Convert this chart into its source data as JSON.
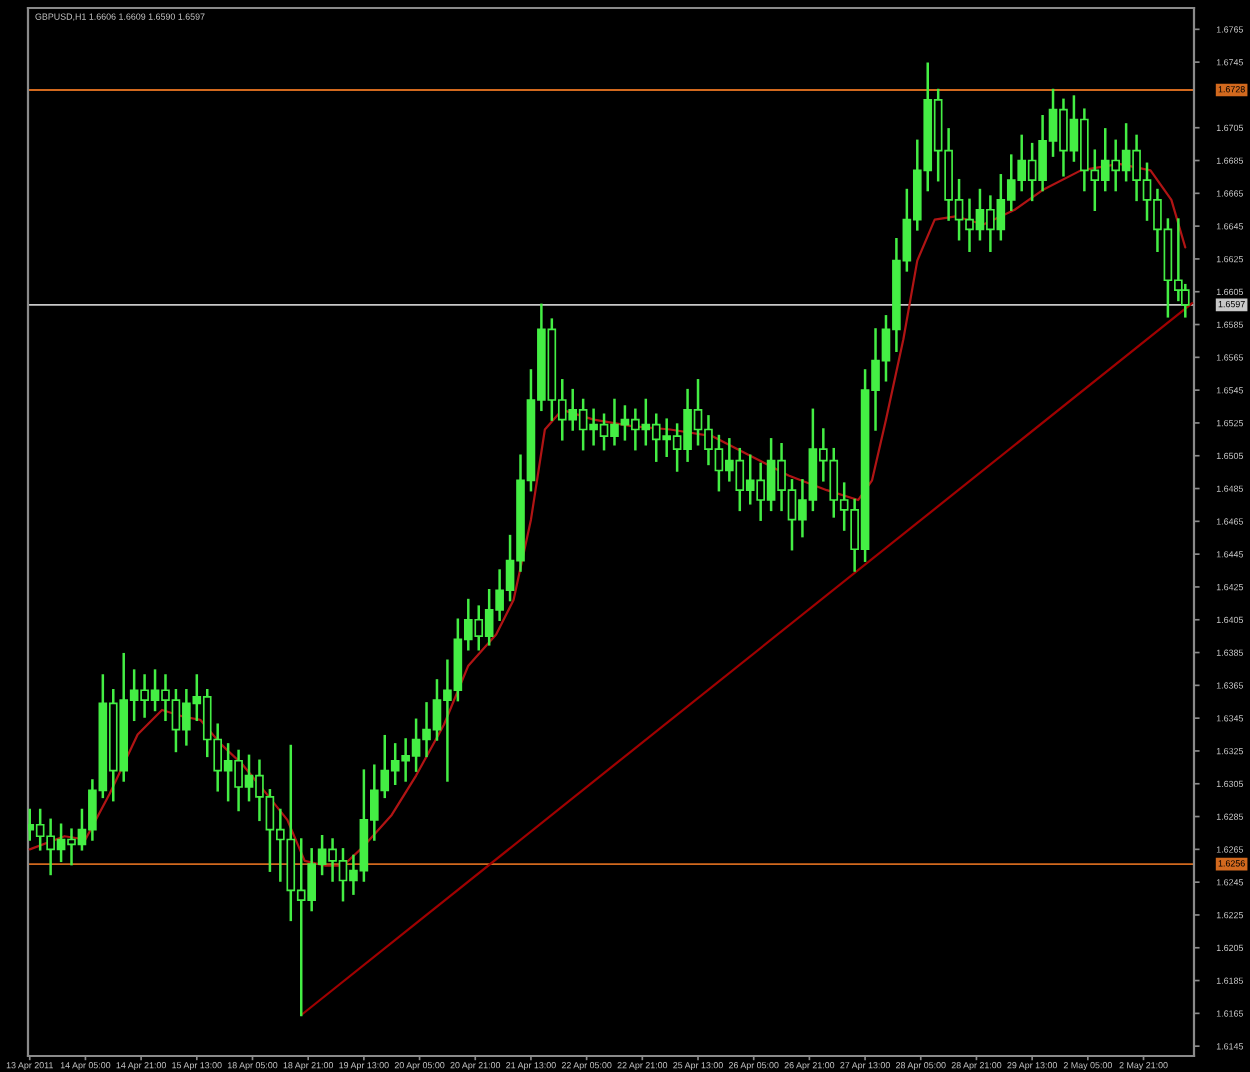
{
  "chart_data": {
    "type": "candlestick",
    "title": "GBPUSD,H1 1.6606 1.6609 1.6590 1.6597",
    "categories": [
      "13 Apr 2011",
      null,
      null,
      null,
      null,
      null,
      null,
      null,
      null,
      null,
      null,
      null,
      null,
      null,
      null,
      null,
      "14 Apr 05:00",
      null,
      null,
      null,
      null,
      null,
      null,
      null,
      null,
      null,
      null,
      null,
      null,
      null,
      null,
      null,
      "14 Apr 21:00",
      null,
      null,
      null,
      null,
      null,
      null,
      null,
      null,
      null,
      null,
      null,
      null,
      null,
      null,
      null,
      "15 Apr 13:00",
      null,
      null,
      null,
      null,
      null,
      null,
      null,
      null,
      null,
      null,
      null,
      null,
      null,
      null,
      null,
      "18 Apr 05:00",
      null,
      null,
      null,
      null,
      null,
      null,
      null,
      null,
      null,
      null,
      null,
      null,
      null,
      null,
      null,
      "18 Apr 21:00",
      null,
      null,
      null,
      null,
      null,
      null,
      null,
      null,
      null,
      null,
      null,
      null,
      null,
      null,
      null,
      "19 Apr 13:00",
      null,
      null,
      null,
      null,
      null,
      null,
      null,
      null,
      null,
      null,
      null,
      null,
      null,
      null,
      null,
      "20 Apr 05:00",
      null,
      null,
      null,
      null,
      null,
      null,
      null,
      null,
      null,
      null,
      null,
      null,
      null,
      null,
      null,
      "20 Apr 21:00",
      null,
      null,
      null,
      null,
      null,
      null,
      null,
      null,
      null,
      null,
      null,
      null,
      null,
      null,
      null,
      "21 Apr 13:00",
      null,
      null,
      null,
      null,
      null,
      null,
      null,
      null,
      null,
      null,
      null,
      null,
      null,
      null,
      null,
      "22 Apr 05:00",
      null,
      null,
      null,
      null,
      null,
      null,
      null,
      null,
      null,
      null,
      null,
      null,
      null,
      null,
      null,
      "22 Apr 21:00",
      null,
      null,
      null,
      null,
      null,
      null,
      null,
      null,
      null,
      null,
      null,
      null,
      null,
      null,
      null,
      "25 Apr 13:00",
      null,
      null,
      null,
      null,
      null,
      null,
      null,
      null,
      null,
      null,
      null,
      null,
      null,
      null,
      null,
      "26 Apr 05:00",
      null,
      null,
      null,
      null,
      null,
      null,
      null,
      null,
      null,
      null,
      null,
      null,
      null,
      null,
      null,
      "26 Apr 21:00",
      null,
      null,
      null,
      null,
      null,
      null,
      null,
      null,
      null,
      null,
      null,
      null,
      null,
      null,
      null,
      "27 Apr 13:00",
      null,
      null,
      null,
      null,
      null,
      null,
      null,
      null,
      null,
      null,
      null,
      null,
      null,
      null,
      null,
      "28 Apr 05:00",
      null,
      null,
      null,
      null,
      null,
      null,
      null,
      null,
      null,
      null,
      null,
      null,
      null,
      null,
      null,
      "28 Apr 21:00",
      null,
      null,
      null,
      null,
      null,
      null,
      null,
      null,
      null,
      null,
      null,
      null,
      null,
      null,
      null,
      "29 Apr 13:00",
      null,
      null,
      null,
      null,
      null,
      null,
      null,
      null,
      null,
      null,
      null,
      null,
      null,
      null,
      null,
      "2 May 05:00",
      null,
      null,
      null,
      null,
      null,
      null,
      null,
      null,
      null,
      null,
      null,
      null,
      null,
      null,
      null,
      "2 May 21:00",
      null,
      null,
      null,
      null,
      null,
      null,
      null,
      null,
      null,
      null,
      null,
      null,
      null,
      null
    ],
    "ylim": [
      1.6139,
      1.6778
    ],
    "yticks": [
      1.6145,
      1.6165,
      1.6185,
      1.6205,
      1.6225,
      1.6245,
      1.6265,
      1.6285,
      1.6305,
      1.6325,
      1.6345,
      1.6365,
      1.6385,
      1.6405,
      1.6425,
      1.6445,
      1.6465,
      1.6485,
      1.6505,
      1.6525,
      1.6545,
      1.6565,
      1.6585,
      1.6605,
      1.6625,
      1.6645,
      1.6665,
      1.6685,
      1.6705,
      1.6745,
      1.6765
    ],
    "series": [
      {
        "color": "#44ee44",
        "ohlc": [
          [
            1.6277,
            1.6289,
            1.6271,
            1.628
          ],
          null,
          null,
          [
            1.628,
            1.6289,
            1.6265,
            1.6273
          ],
          null,
          null,
          [
            1.6273,
            1.6283,
            1.625,
            1.6265
          ],
          null,
          null,
          [
            1.6265,
            1.628,
            1.6258,
            1.6271
          ],
          null,
          null,
          [
            1.6271,
            1.6277,
            1.6256,
            1.6268
          ],
          null,
          null,
          [
            1.6268,
            1.6289,
            1.6265,
            1.6277
          ],
          null,
          null,
          [
            1.6277,
            1.6307,
            1.6271,
            1.6301
          ],
          null,
          null,
          [
            1.6301,
            1.6371,
            1.6297,
            1.6354
          ],
          null,
          null,
          [
            1.6354,
            1.6362,
            1.6295,
            1.6313
          ],
          null,
          null,
          [
            1.6313,
            1.6384,
            1.6307,
            1.6356
          ],
          null,
          null,
          [
            1.6356,
            1.6374,
            1.6344,
            1.6362
          ],
          null,
          null,
          [
            1.6362,
            1.6371,
            1.6346,
            1.6356
          ],
          null,
          null,
          [
            1.6356,
            1.6374,
            1.635,
            1.6362
          ],
          null,
          null,
          [
            1.6362,
            1.6371,
            1.6344,
            1.6356
          ],
          null,
          null,
          [
            1.6356,
            1.6362,
            1.6325,
            1.6338
          ],
          null,
          null,
          [
            1.6338,
            1.6362,
            1.6329,
            1.6354
          ],
          null,
          null,
          [
            1.6354,
            1.6371,
            1.6344,
            1.6358
          ],
          null,
          null,
          [
            1.6358,
            1.6362,
            1.6322,
            1.6332
          ],
          null,
          null,
          [
            1.6332,
            1.6341,
            1.6301,
            1.6313
          ],
          null,
          null,
          [
            1.6313,
            1.6329,
            1.6295,
            1.6319
          ],
          null,
          null,
          [
            1.6319,
            1.6325,
            1.6289,
            1.6303
          ],
          null,
          null,
          [
            1.6303,
            1.6322,
            1.6295,
            1.631
          ],
          null,
          null,
          [
            1.631,
            1.6319,
            1.6283,
            1.6297
          ],
          null,
          null,
          [
            1.6297,
            1.6301,
            1.6252,
            1.6277
          ],
          null,
          null,
          [
            1.6277,
            1.6289,
            1.6246,
            1.6271
          ],
          null,
          null,
          [
            1.6271,
            1.6328,
            1.6222,
            1.624
          ],
          null,
          null,
          [
            1.624,
            1.6271,
            1.6164,
            1.6234
          ],
          null,
          null,
          [
            1.6234,
            1.6265,
            1.6228,
            1.6256
          ],
          null,
          null,
          [
            1.6256,
            1.6273,
            1.625,
            1.6265
          ],
          null,
          null,
          [
            1.6265,
            1.6271,
            1.6246,
            1.6258
          ],
          null,
          null,
          [
            1.6258,
            1.6265,
            1.6234,
            1.6246
          ],
          null,
          null,
          [
            1.6246,
            1.6261,
            1.6238,
            1.6252
          ],
          null,
          null,
          [
            1.6252,
            1.6313,
            1.6246,
            1.6283
          ],
          null,
          null,
          [
            1.6283,
            1.6316,
            1.6271,
            1.6301
          ],
          null,
          null,
          [
            1.6301,
            1.6334,
            1.6297,
            1.6313
          ],
          null,
          null,
          [
            1.6313,
            1.6329,
            1.6305,
            1.6319
          ],
          null,
          null,
          [
            1.6319,
            1.6332,
            1.6307,
            1.6322
          ],
          null,
          null,
          [
            1.6322,
            1.6344,
            1.6313,
            1.6332
          ],
          null,
          null,
          [
            1.6332,
            1.6354,
            1.6322,
            1.6338
          ],
          null,
          null,
          [
            1.6338,
            1.6368,
            1.6332,
            1.6356
          ],
          null,
          null,
          [
            1.6356,
            1.638,
            1.6307,
            1.6362
          ],
          null,
          null,
          [
            1.6362,
            1.6405,
            1.6356,
            1.6393
          ],
          null,
          null,
          [
            1.6393,
            1.6417,
            1.6387,
            1.6405
          ],
          null,
          null,
          [
            1.6405,
            1.6413,
            1.6387,
            1.6395
          ],
          null,
          null,
          [
            1.6395,
            1.6423,
            1.639,
            1.6411
          ],
          null,
          null,
          [
            1.6411,
            1.6435,
            1.6405,
            1.6423
          ],
          null,
          null,
          [
            1.6423,
            1.6456,
            1.6417,
            1.6441
          ],
          null,
          null,
          [
            1.6441,
            1.6505,
            1.6435,
            1.649
          ],
          null,
          null,
          [
            1.649,
            1.6557,
            1.6484,
            1.6539
          ],
          null,
          null,
          [
            1.6539,
            1.6597,
            1.6533,
            1.6582
          ],
          null,
          null,
          [
            1.6582,
            1.6588,
            1.6527,
            1.6539
          ],
          null,
          null,
          [
            1.6539,
            1.6551,
            1.6515,
            1.6527
          ],
          null,
          null,
          [
            1.6527,
            1.6545,
            1.6521,
            1.6533
          ],
          null,
          null,
          [
            1.6533,
            1.6539,
            1.6509,
            1.6521
          ],
          null,
          null,
          [
            1.6521,
            1.6533,
            1.6512,
            1.6524
          ],
          null,
          null,
          [
            1.6524,
            1.653,
            1.6509,
            1.6517
          ],
          null,
          null,
          [
            1.6517,
            1.6539,
            1.6512,
            1.6524
          ],
          null,
          null,
          [
            1.6524,
            1.6535,
            1.6515,
            1.6527
          ],
          null,
          null,
          [
            1.6527,
            1.6533,
            1.6509,
            1.6521
          ],
          null,
          null,
          [
            1.6521,
            1.6539,
            1.6512,
            1.6524
          ],
          null,
          null,
          [
            1.6524,
            1.653,
            1.6502,
            1.6515
          ],
          null,
          null,
          [
            1.6515,
            1.6527,
            1.6505,
            1.6517
          ],
          null,
          null,
          [
            1.6517,
            1.6524,
            1.6496,
            1.6509
          ],
          null,
          null,
          [
            1.6509,
            1.6545,
            1.6502,
            1.6533
          ],
          null,
          null,
          [
            1.6533,
            1.6551,
            1.6512,
            1.6521
          ],
          null,
          null,
          [
            1.6521,
            1.6529,
            1.65,
            1.6509
          ],
          null,
          null,
          [
            1.6509,
            1.6517,
            1.6484,
            1.6496
          ],
          null,
          null,
          [
            1.6496,
            1.6515,
            1.649,
            1.6502
          ],
          null,
          null,
          [
            1.6502,
            1.6509,
            1.6472,
            1.6484
          ],
          null,
          null,
          [
            1.6484,
            1.6505,
            1.6476,
            1.649
          ],
          null,
          null,
          [
            1.649,
            1.65,
            1.6466,
            1.6478
          ],
          null,
          null,
          [
            1.6478,
            1.6515,
            1.6472,
            1.6502
          ],
          null,
          null,
          [
            1.6502,
            1.6512,
            1.6472,
            1.6484
          ],
          null,
          null,
          [
            1.6484,
            1.649,
            1.6448,
            1.6466
          ],
          null,
          null,
          [
            1.6466,
            1.649,
            1.6456,
            1.6478
          ],
          null,
          null,
          [
            1.6478,
            1.6533,
            1.6472,
            1.6509
          ],
          null,
          null,
          [
            1.6509,
            1.6521,
            1.649,
            1.6502
          ],
          null,
          null,
          [
            1.6502,
            1.6509,
            1.6468,
            1.6478
          ],
          null,
          null,
          [
            1.6478,
            1.6488,
            1.646,
            1.6472
          ],
          null,
          null,
          [
            1.6472,
            1.6478,
            1.6435,
            1.6448
          ],
          null,
          null,
          [
            1.6448,
            1.6557,
            1.6441,
            1.6545
          ],
          null,
          null,
          [
            1.6545,
            1.6582,
            1.6521,
            1.6563
          ],
          null,
          null,
          [
            1.6563,
            1.659,
            1.6551,
            1.6582
          ],
          null,
          null,
          [
            1.6582,
            1.6637,
            1.6569,
            1.6624
          ],
          null,
          null,
          [
            1.6624,
            1.6667,
            1.6618,
            1.6649
          ],
          null,
          null,
          [
            1.6649,
            1.6697,
            1.6643,
            1.6679
          ],
          null,
          null,
          [
            1.6679,
            1.6744,
            1.6667,
            1.6722
          ],
          null,
          null,
          [
            1.6722,
            1.6728,
            1.6673,
            1.6691
          ],
          null,
          null,
          [
            1.6691,
            1.6704,
            1.6649,
            1.6661
          ],
          null,
          null,
          [
            1.6661,
            1.6673,
            1.6637,
            1.6649
          ],
          null,
          null,
          [
            1.6649,
            1.6661,
            1.663,
            1.6643
          ],
          null,
          null,
          [
            1.6643,
            1.6667,
            1.6637,
            1.6655
          ],
          null,
          null,
          [
            1.6655,
            1.6663,
            1.663,
            1.6643
          ],
          null,
          null,
          [
            1.6643,
            1.6676,
            1.6637,
            1.6661
          ],
          null,
          null,
          [
            1.6661,
            1.6688,
            1.6655,
            1.6673
          ],
          null,
          null,
          [
            1.6673,
            1.67,
            1.6667,
            1.6685
          ],
          null,
          null,
          [
            1.6685,
            1.6695,
            1.6661,
            1.6673
          ],
          null,
          null,
          [
            1.6673,
            1.6712,
            1.6667,
            1.6697
          ],
          null,
          null,
          [
            1.6697,
            1.6728,
            1.6688,
            1.6716
          ],
          null,
          null,
          [
            1.6716,
            1.6722,
            1.6676,
            1.6691
          ],
          null,
          null,
          [
            1.6691,
            1.6724,
            1.6685,
            1.671
          ],
          null,
          null,
          [
            1.671,
            1.6716,
            1.6667,
            1.6679
          ],
          null,
          null,
          [
            1.6679,
            1.6691,
            1.6655,
            1.6673
          ],
          null,
          null,
          [
            1.6673,
            1.6704,
            1.6667,
            1.6685
          ],
          null,
          null,
          [
            1.6685,
            1.6697,
            1.6667,
            1.6679
          ],
          null,
          null,
          [
            1.6679,
            1.6707,
            1.6673,
            1.6691
          ],
          null,
          null,
          [
            1.6691,
            1.67,
            1.6661,
            1.6673
          ],
          null,
          null,
          [
            1.6673,
            1.6683,
            1.6649,
            1.6661
          ],
          null,
          null,
          [
            1.6661,
            1.6667,
            1.663,
            1.6643
          ],
          null,
          null,
          [
            1.6643,
            1.6649,
            1.659,
            1.6612
          ],
          null,
          null,
          [
            1.6612,
            1.6649,
            1.66,
            1.6606
          ],
          null,
          [
            1.6606,
            1.6609,
            1.659,
            1.6597
          ],
          null,
          null
        ]
      },
      {
        "type": "line",
        "color": "#b01414",
        "values": [
          1.6265,
          null,
          null,
          null,
          null,
          null,
          null,
          null,
          null,
          null,
          1.6273,
          null,
          null,
          null,
          null,
          null,
          1.6271,
          null,
          null,
          null,
          null,
          null,
          null,
          1.6299,
          null,
          null,
          null,
          null,
          null,
          null,
          null,
          1.6335,
          null,
          null,
          null,
          null,
          null,
          null,
          1.635,
          null,
          null,
          null,
          null,
          null,
          1.6346,
          null,
          null,
          null,
          null,
          1.6344,
          null,
          null,
          null,
          null,
          null,
          1.6329,
          null,
          null,
          null,
          null,
          null,
          1.6317,
          null,
          null,
          null,
          null,
          null,
          null,
          1.6299,
          null,
          null,
          null,
          null,
          null,
          1.6283,
          null,
          null,
          null,
          null,
          1.6258,
          null,
          null,
          null,
          null,
          null,
          1.6255,
          null,
          null,
          null,
          null,
          1.6255,
          null,
          null,
          null,
          null,
          null,
          1.6267,
          null,
          null,
          null,
          null,
          null,
          null,
          null,
          1.6286,
          null,
          null,
          null,
          null,
          null,
          null,
          1.631,
          null,
          null,
          null,
          null,
          null,
          null,
          null,
          1.6341,
          null,
          null,
          null,
          null,
          null,
          null,
          1.6377,
          null,
          null,
          null,
          null,
          null,
          null,
          null,
          1.6396,
          null,
          null,
          null,
          null,
          1.6417,
          null,
          null,
          null,
          null,
          1.6466,
          null,
          null,
          null,
          1.6521,
          null,
          null,
          null,
          null,
          1.6533,
          null,
          null,
          null,
          null,
          null,
          null,
          null,
          null,
          1.6527,
          null,
          null,
          null,
          null,
          null,
          null,
          null,
          null,
          null,
          null,
          1.6523,
          null,
          null,
          null,
          null,
          null,
          null,
          null,
          null,
          null,
          null,
          1.6521,
          null,
          null,
          null,
          null,
          null,
          null,
          null,
          null,
          null,
          null,
          null,
          1.6517,
          null,
          null,
          null,
          null,
          null,
          null,
          null,
          null,
          null,
          null,
          1.6505,
          null,
          null,
          null,
          null,
          null,
          null,
          null,
          null,
          null,
          null,
          1.6493,
          null,
          null,
          null,
          null,
          null,
          null,
          null,
          null,
          null,
          null,
          1.6484,
          null,
          null,
          null,
          null,
          null,
          null,
          null,
          null,
          1.6478,
          null,
          null,
          null,
          1.649,
          null,
          null,
          null,
          1.6527,
          null,
          null,
          null,
          null,
          1.6576,
          null,
          null,
          null,
          1.6624,
          null,
          null,
          null,
          null,
          1.6649,
          null,
          null,
          null,
          null,
          null,
          1.6651,
          null,
          null,
          null,
          null,
          null,
          null,
          null,
          1.6646,
          null,
          null,
          null,
          null,
          null,
          null,
          null,
          null,
          1.6655,
          null,
          null,
          null,
          null,
          null,
          null,
          null,
          1.6667,
          null,
          null,
          null,
          null,
          null,
          null,
          null,
          null,
          null,
          null,
          1.6679,
          null,
          null,
          null,
          null,
          null,
          null,
          null,
          null,
          null,
          null,
          1.6683,
          null,
          null,
          null,
          null,
          null,
          null,
          null,
          null,
          1.6679,
          null,
          null,
          null,
          null,
          null,
          1.6661,
          null,
          null,
          null,
          1.6632,
          null,
          null
        ]
      },
      {
        "type": "line",
        "color": "#a00000",
        "values": [
          null,
          null,
          null,
          null,
          null,
          null,
          null,
          null,
          null,
          null,
          null,
          null,
          null,
          null,
          null,
          null,
          null,
          null,
          null,
          null,
          null,
          null,
          null,
          null,
          null,
          null,
          null,
          null,
          null,
          null,
          null,
          null,
          null,
          null,
          null,
          null,
          null,
          null,
          null,
          null,
          null,
          null,
          null,
          null,
          null,
          null,
          null,
          null,
          null,
          null,
          null,
          null,
          null,
          null,
          null,
          null,
          null,
          null,
          null,
          null,
          null,
          null,
          null,
          null,
          null,
          null,
          null,
          null,
          null,
          null,
          null,
          null,
          null,
          null,
          null,
          null,
          null,
          null,
          1.6164,
          null,
          null,
          null,
          null,
          null,
          null,
          null,
          null,
          null,
          null,
          null,
          null,
          null,
          null,
          null,
          null,
          null,
          null,
          null,
          null,
          null,
          null,
          null,
          null,
          null,
          null,
          null,
          null,
          null,
          null,
          null,
          null,
          null,
          null,
          null,
          null,
          null,
          null,
          null,
          null,
          null,
          null,
          null,
          null,
          null,
          null,
          null,
          null,
          null,
          null,
          null,
          null,
          null,
          null,
          null,
          null,
          null,
          null,
          null,
          null,
          null,
          null,
          null,
          null,
          null,
          null,
          null,
          null,
          null,
          null,
          null,
          null,
          null,
          null,
          null,
          null,
          null,
          null,
          null,
          null,
          null,
          null,
          null,
          null,
          null,
          null,
          null,
          null,
          null,
          null,
          null,
          null,
          null,
          null,
          null,
          null,
          null,
          null,
          null,
          null,
          null,
          null,
          null,
          null,
          null,
          null,
          null,
          null,
          null,
          null,
          null,
          null,
          null,
          null,
          null,
          null,
          null,
          null,
          null,
          null,
          null,
          null,
          null,
          null,
          null,
          null,
          null,
          null,
          null,
          null,
          null,
          null,
          null,
          null,
          null,
          null,
          null,
          null,
          null,
          null,
          null,
          null,
          null,
          null,
          null,
          null,
          null,
          null,
          null,
          null,
          null,
          null,
          null,
          null,
          null,
          null,
          null,
          null,
          null,
          null,
          null,
          null,
          null,
          null,
          null,
          null,
          null,
          null,
          null,
          null,
          null,
          null,
          null,
          null,
          null,
          null,
          null,
          null,
          null,
          null,
          null,
          null,
          null,
          null,
          null,
          null,
          null,
          null,
          null,
          null,
          null,
          null,
          null,
          null,
          null,
          null,
          null,
          null,
          null,
          null,
          null,
          null,
          null,
          null,
          null,
          null,
          null,
          null,
          null,
          null,
          null,
          null,
          null,
          null,
          null,
          null,
          null,
          null,
          null,
          null,
          null,
          null,
          null,
          null,
          null,
          null,
          null,
          null,
          null,
          null,
          null,
          null,
          null,
          null,
          null,
          null,
          null,
          null,
          null,
          null,
          null,
          null,
          null,
          null,
          null,
          null,
          null,
          null,
          null,
          null,
          null,
          null,
          null,
          null,
          null,
          1.6598
        ]
      }
    ],
    "ref_lines": [
      {
        "axis": "y",
        "value": 1.6728,
        "label": "1.6728",
        "color": "#d2691e"
      },
      {
        "axis": "y",
        "value": 1.6256,
        "label": "1.6256",
        "color": "#d2691e"
      },
      {
        "axis": "y",
        "value": 1.6597,
        "label": "1.6597",
        "color": "#c8c8c8"
      }
    ]
  }
}
